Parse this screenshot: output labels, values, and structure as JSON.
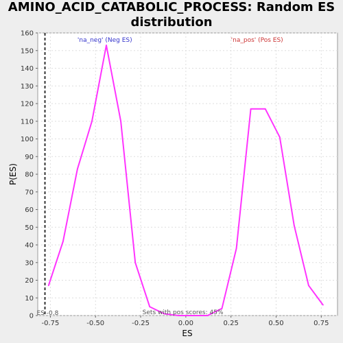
{
  "chart_data": {
    "type": "line",
    "title": "AMINO_ACID_CATABOLIC_PROCESS: Random ES distribution",
    "xlabel": "ES",
    "ylabel": "P(ES)",
    "xlim": [
      -0.82,
      0.84
    ],
    "ylim": [
      0,
      160
    ],
    "x_ticks": [
      -0.75,
      -0.5,
      -0.25,
      0.0,
      0.25,
      0.5,
      0.75
    ],
    "x_tick_labels": [
      "-0.75",
      "-0.50",
      "-0.25",
      "0.00",
      "0.25",
      "0.50",
      "0.75"
    ],
    "y_ticks": [
      0,
      10,
      20,
      30,
      40,
      50,
      60,
      70,
      80,
      90,
      100,
      110,
      120,
      130,
      140,
      150,
      160
    ],
    "y_tick_labels": [
      "0",
      "10",
      "20",
      "30",
      "40",
      "50",
      "60",
      "70",
      "80",
      "90",
      "100",
      "110",
      "120",
      "130",
      "140",
      "150",
      "160"
    ],
    "grid": true,
    "series": [
      {
        "color": "#ff33ff",
        "x": [
          -0.76,
          -0.68,
          -0.6,
          -0.52,
          -0.44,
          -0.36,
          -0.28,
          -0.2,
          -0.12,
          -0.04,
          0.04,
          0.12,
          0.2,
          0.28,
          0.36,
          0.44,
          0.52,
          0.6,
          0.68,
          0.76
        ],
        "y": [
          17,
          42,
          83,
          110,
          153,
          110,
          30,
          5,
          1,
          0,
          0,
          0,
          4,
          38,
          117,
          117,
          101,
          51,
          17,
          6
        ]
      }
    ],
    "vline": {
      "x": -0.78,
      "label": "ES -0.8",
      "style": "dashed",
      "color": "#333333"
    },
    "annotations": {
      "neg_label": "'na_neg' (Neg ES)",
      "neg_color": "#3333cc",
      "pos_label": "'na_pos' (Pos ES)",
      "pos_color": "#cc3333",
      "bottom_note": "Sets with pos scores: 45%"
    }
  }
}
